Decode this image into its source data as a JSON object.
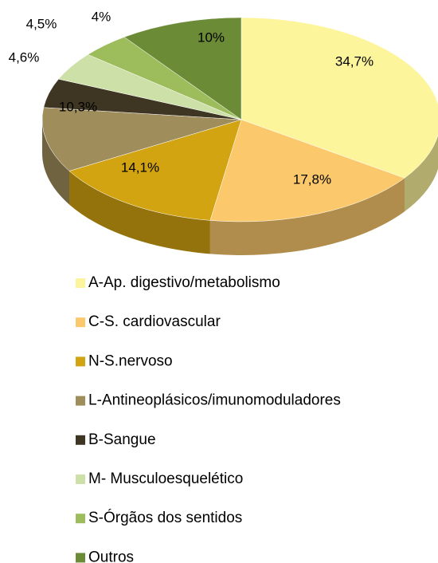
{
  "chart_data": {
    "type": "pie",
    "three_d": true,
    "categories": [
      "A-Ap. digestivo/metabolismo",
      "C-S. cardiovascular",
      "N-S.nervoso",
      "L-Antineoplásicos/imunomoduladores",
      "B-Sangue",
      "M- Musculoesquelético",
      "S-Órgãos dos sentidos",
      "Outros"
    ],
    "values": [
      34.7,
      17.8,
      14.1,
      10.3,
      4.6,
      4.5,
      4,
      10
    ],
    "value_labels": [
      "34,7%",
      "17,8%",
      "14,1%",
      "10,3%",
      "4,6%",
      "4,5%",
      "4%",
      "10%"
    ],
    "colors": [
      "#fdf59c",
      "#fbc96c",
      "#d3a412",
      "#9f8d5c",
      "#3e3622",
      "#cde0a8",
      "#9dbd5d",
      "#6b8b36"
    ],
    "legend": "bottom"
  }
}
